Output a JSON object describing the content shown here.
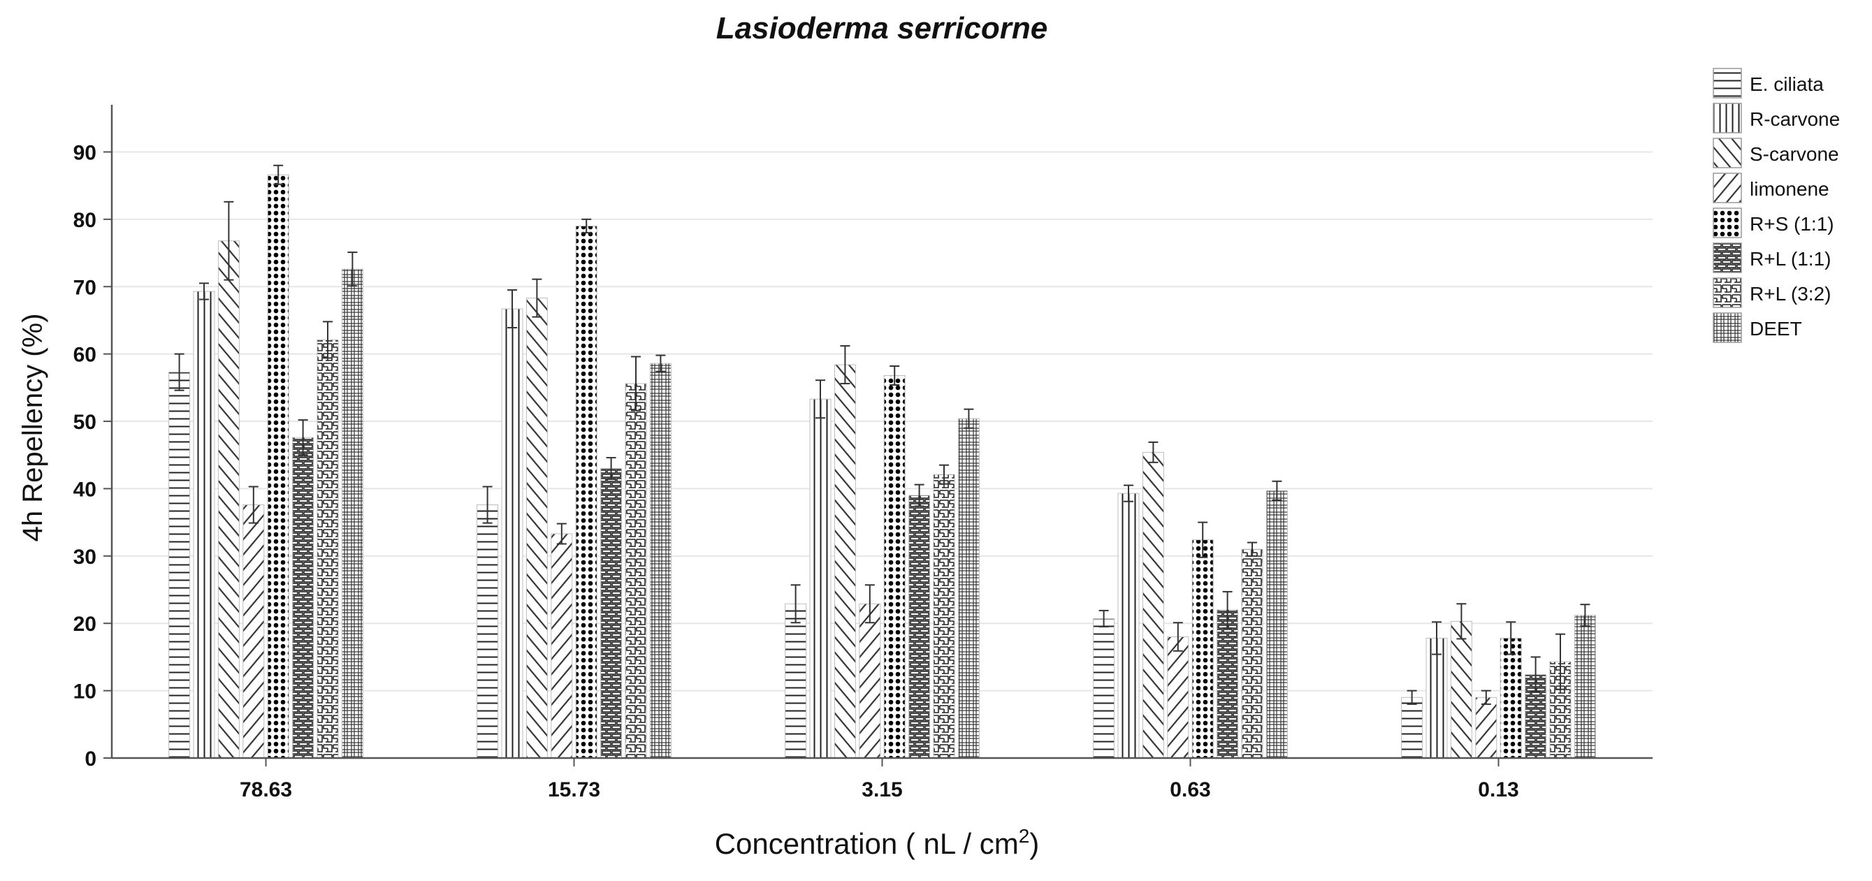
{
  "chart_data": {
    "type": "bar",
    "title": "Lasioderma serricorne",
    "xlabel": "Concentration  ( nL / cm",
    "xlabel_superscript": "2",
    "xlabel_suffix": ")",
    "ylabel": "4h Repellency  (%)",
    "ylim": [
      0,
      97
    ],
    "yticks": [
      0,
      10,
      20,
      30,
      40,
      50,
      60,
      70,
      80,
      90
    ],
    "grid": true,
    "legend_position": "top-right",
    "categories": [
      "78.63",
      "15.73",
      "3.15",
      "0.63",
      "0.13"
    ],
    "series": [
      {
        "name": "E. ciliata",
        "pattern": "hlines",
        "values": [
          57.3,
          37.6,
          22.9,
          20.7,
          9.0
        ],
        "errors": [
          2.7,
          2.7,
          2.8,
          1.2,
          1.0
        ]
      },
      {
        "name": "R-carvone",
        "pattern": "vlines",
        "values": [
          69.3,
          66.7,
          53.3,
          39.3,
          17.8
        ],
        "errors": [
          1.2,
          2.8,
          2.8,
          1.2,
          2.4
        ]
      },
      {
        "name": "S-carvone",
        "pattern": "fdiag",
        "values": [
          76.8,
          68.3,
          58.4,
          45.4,
          20.3
        ],
        "errors": [
          5.8,
          2.8,
          2.8,
          1.5,
          2.6
        ]
      },
      {
        "name": "limonene",
        "pattern": "bdiag",
        "values": [
          37.6,
          33.3,
          22.9,
          18.0,
          9.0
        ],
        "errors": [
          2.7,
          1.5,
          2.8,
          2.1,
          1.0
        ]
      },
      {
        "name": "R+S  (1:1)",
        "pattern": "dots",
        "values": [
          86.6,
          79.0,
          56.8,
          32.4,
          17.8
        ],
        "errors": [
          1.4,
          1.0,
          1.4,
          2.6,
          2.4
        ]
      },
      {
        "name": "R+L  (1:1)",
        "pattern": "brick",
        "values": [
          47.6,
          43.0,
          39.0,
          22.0,
          12.4
        ],
        "errors": [
          2.6,
          1.6,
          1.6,
          2.7,
          2.6
        ]
      },
      {
        "name": "R+L  (3:2)",
        "pattern": "maze",
        "values": [
          62.1,
          55.6,
          42.1,
          31.0,
          14.3
        ],
        "errors": [
          2.7,
          4.0,
          1.4,
          1.0,
          4.1
        ]
      },
      {
        "name": "DEET",
        "pattern": "crosshatch",
        "values": [
          72.6,
          58.6,
          50.4,
          39.7,
          21.2
        ],
        "errors": [
          2.5,
          1.2,
          1.4,
          1.4,
          1.6
        ]
      }
    ]
  }
}
